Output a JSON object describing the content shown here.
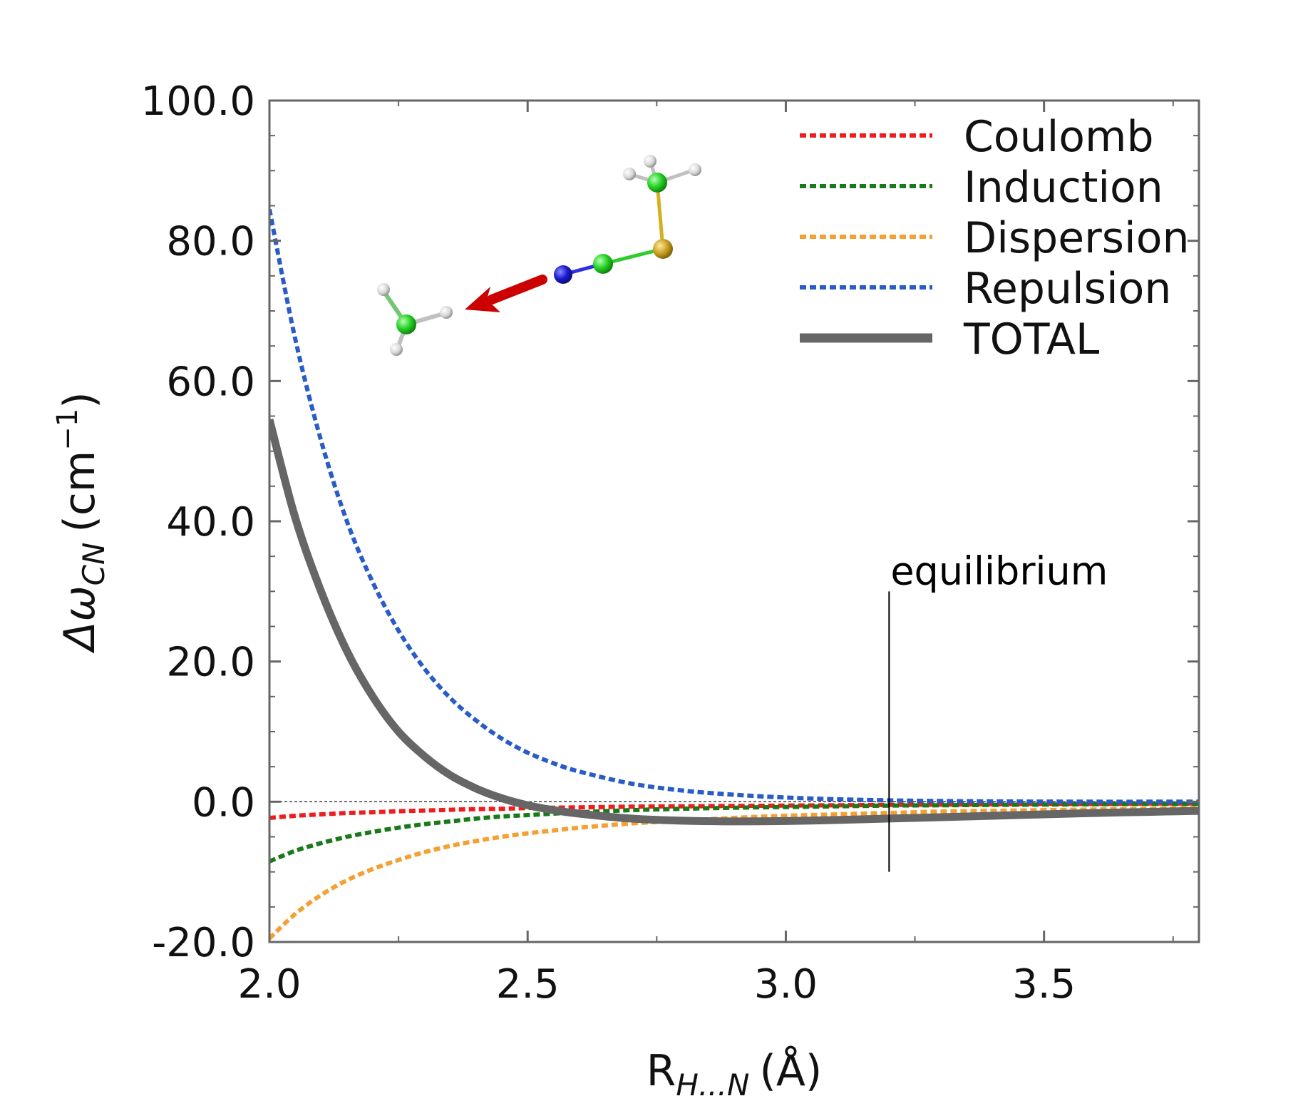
{
  "chart_data": {
    "type": "line",
    "title": "",
    "xlabel": "R",
    "xlabel_sub": "H...N",
    "xlabel_unit": "(Å)",
    "ylabel": "Δω",
    "ylabel_sub": "CN",
    "ylabel_unit_pre": "(cm",
    "ylabel_unit_sup": "−1",
    "ylabel_unit_post": ")",
    "xlim": [
      2.0,
      3.8
    ],
    "ylim": [
      -20.0,
      100.0
    ],
    "xticks": [
      2.0,
      2.5,
      3.0,
      3.5
    ],
    "xtick_labels": [
      "2.0",
      "2.5",
      "3.0",
      "3.5"
    ],
    "yticks": [
      -20,
      0,
      20,
      40,
      60,
      80,
      100
    ],
    "ytick_labels": [
      "-20.0",
      "0.0",
      "20.0",
      "40.0",
      "60.0",
      "80.0",
      "100.0"
    ],
    "grid": false,
    "legend_position": "top-right",
    "zero_line": true,
    "annotation": {
      "text": "equilibrium",
      "x": 3.2,
      "y_range": [
        -10.0,
        30.0
      ]
    },
    "x": [
      2.0,
      2.05,
      2.1,
      2.15,
      2.2,
      2.25,
      2.3,
      2.35,
      2.4,
      2.45,
      2.5,
      2.55,
      2.6,
      2.7,
      2.8,
      2.9,
      3.0,
      3.1,
      3.2,
      3.3,
      3.4,
      3.5,
      3.6,
      3.7,
      3.8
    ],
    "series": [
      {
        "name": "Coulomb",
        "color": "#ee1c1c",
        "style": "dashed",
        "values": [
          -2.3,
          -2.0,
          -1.8,
          -1.6,
          -1.5,
          -1.35,
          -1.25,
          -1.15,
          -1.05,
          -1.0,
          -0.9,
          -0.85,
          -0.8,
          -0.7,
          -0.65,
          -0.6,
          -0.55,
          -0.5,
          -0.45,
          -0.4,
          -0.35,
          -0.3,
          -0.3,
          -0.25,
          -0.25
        ]
      },
      {
        "name": "Induction",
        "color": "#1a7a1a",
        "style": "dashed",
        "values": [
          -8.5,
          -7.0,
          -5.9,
          -5.0,
          -4.3,
          -3.7,
          -3.2,
          -2.8,
          -2.4,
          -2.1,
          -1.9,
          -1.7,
          -1.5,
          -1.2,
          -1.0,
          -0.85,
          -0.75,
          -0.65,
          -0.55,
          -0.5,
          -0.45,
          -0.4,
          -0.35,
          -0.3,
          -0.3
        ]
      },
      {
        "name": "Dispersion",
        "color": "#f4a032",
        "style": "dashed",
        "values": [
          -19.5,
          -16.0,
          -13.3,
          -11.2,
          -9.6,
          -8.3,
          -7.2,
          -6.3,
          -5.6,
          -5.0,
          -4.5,
          -4.1,
          -3.7,
          -3.1,
          -2.7,
          -2.3,
          -2.0,
          -1.8,
          -1.6,
          -1.4,
          -1.3,
          -1.2,
          -1.1,
          -1.0,
          -0.9
        ]
      },
      {
        "name": "Repulsion",
        "color": "#2a5cc8",
        "style": "dashed",
        "values": [
          84.5,
          66.0,
          51.5,
          40.0,
          31.3,
          24.4,
          19.0,
          14.8,
          11.6,
          9.0,
          7.0,
          5.5,
          4.3,
          2.6,
          1.6,
          1.0,
          0.6,
          0.35,
          0.2,
          0.1,
          0.05,
          0.02,
          0.0,
          0.0,
          0.0
        ]
      },
      {
        "name": "TOTAL",
        "color": "#666666",
        "style": "solid",
        "values": [
          54.5,
          40.5,
          30.0,
          21.5,
          15.0,
          10.0,
          6.5,
          3.8,
          1.9,
          0.5,
          -0.5,
          -1.2,
          -1.7,
          -2.4,
          -2.7,
          -2.8,
          -2.75,
          -2.6,
          -2.4,
          -2.2,
          -2.0,
          -1.8,
          -1.6,
          -1.45,
          -1.3
        ]
      }
    ]
  }
}
